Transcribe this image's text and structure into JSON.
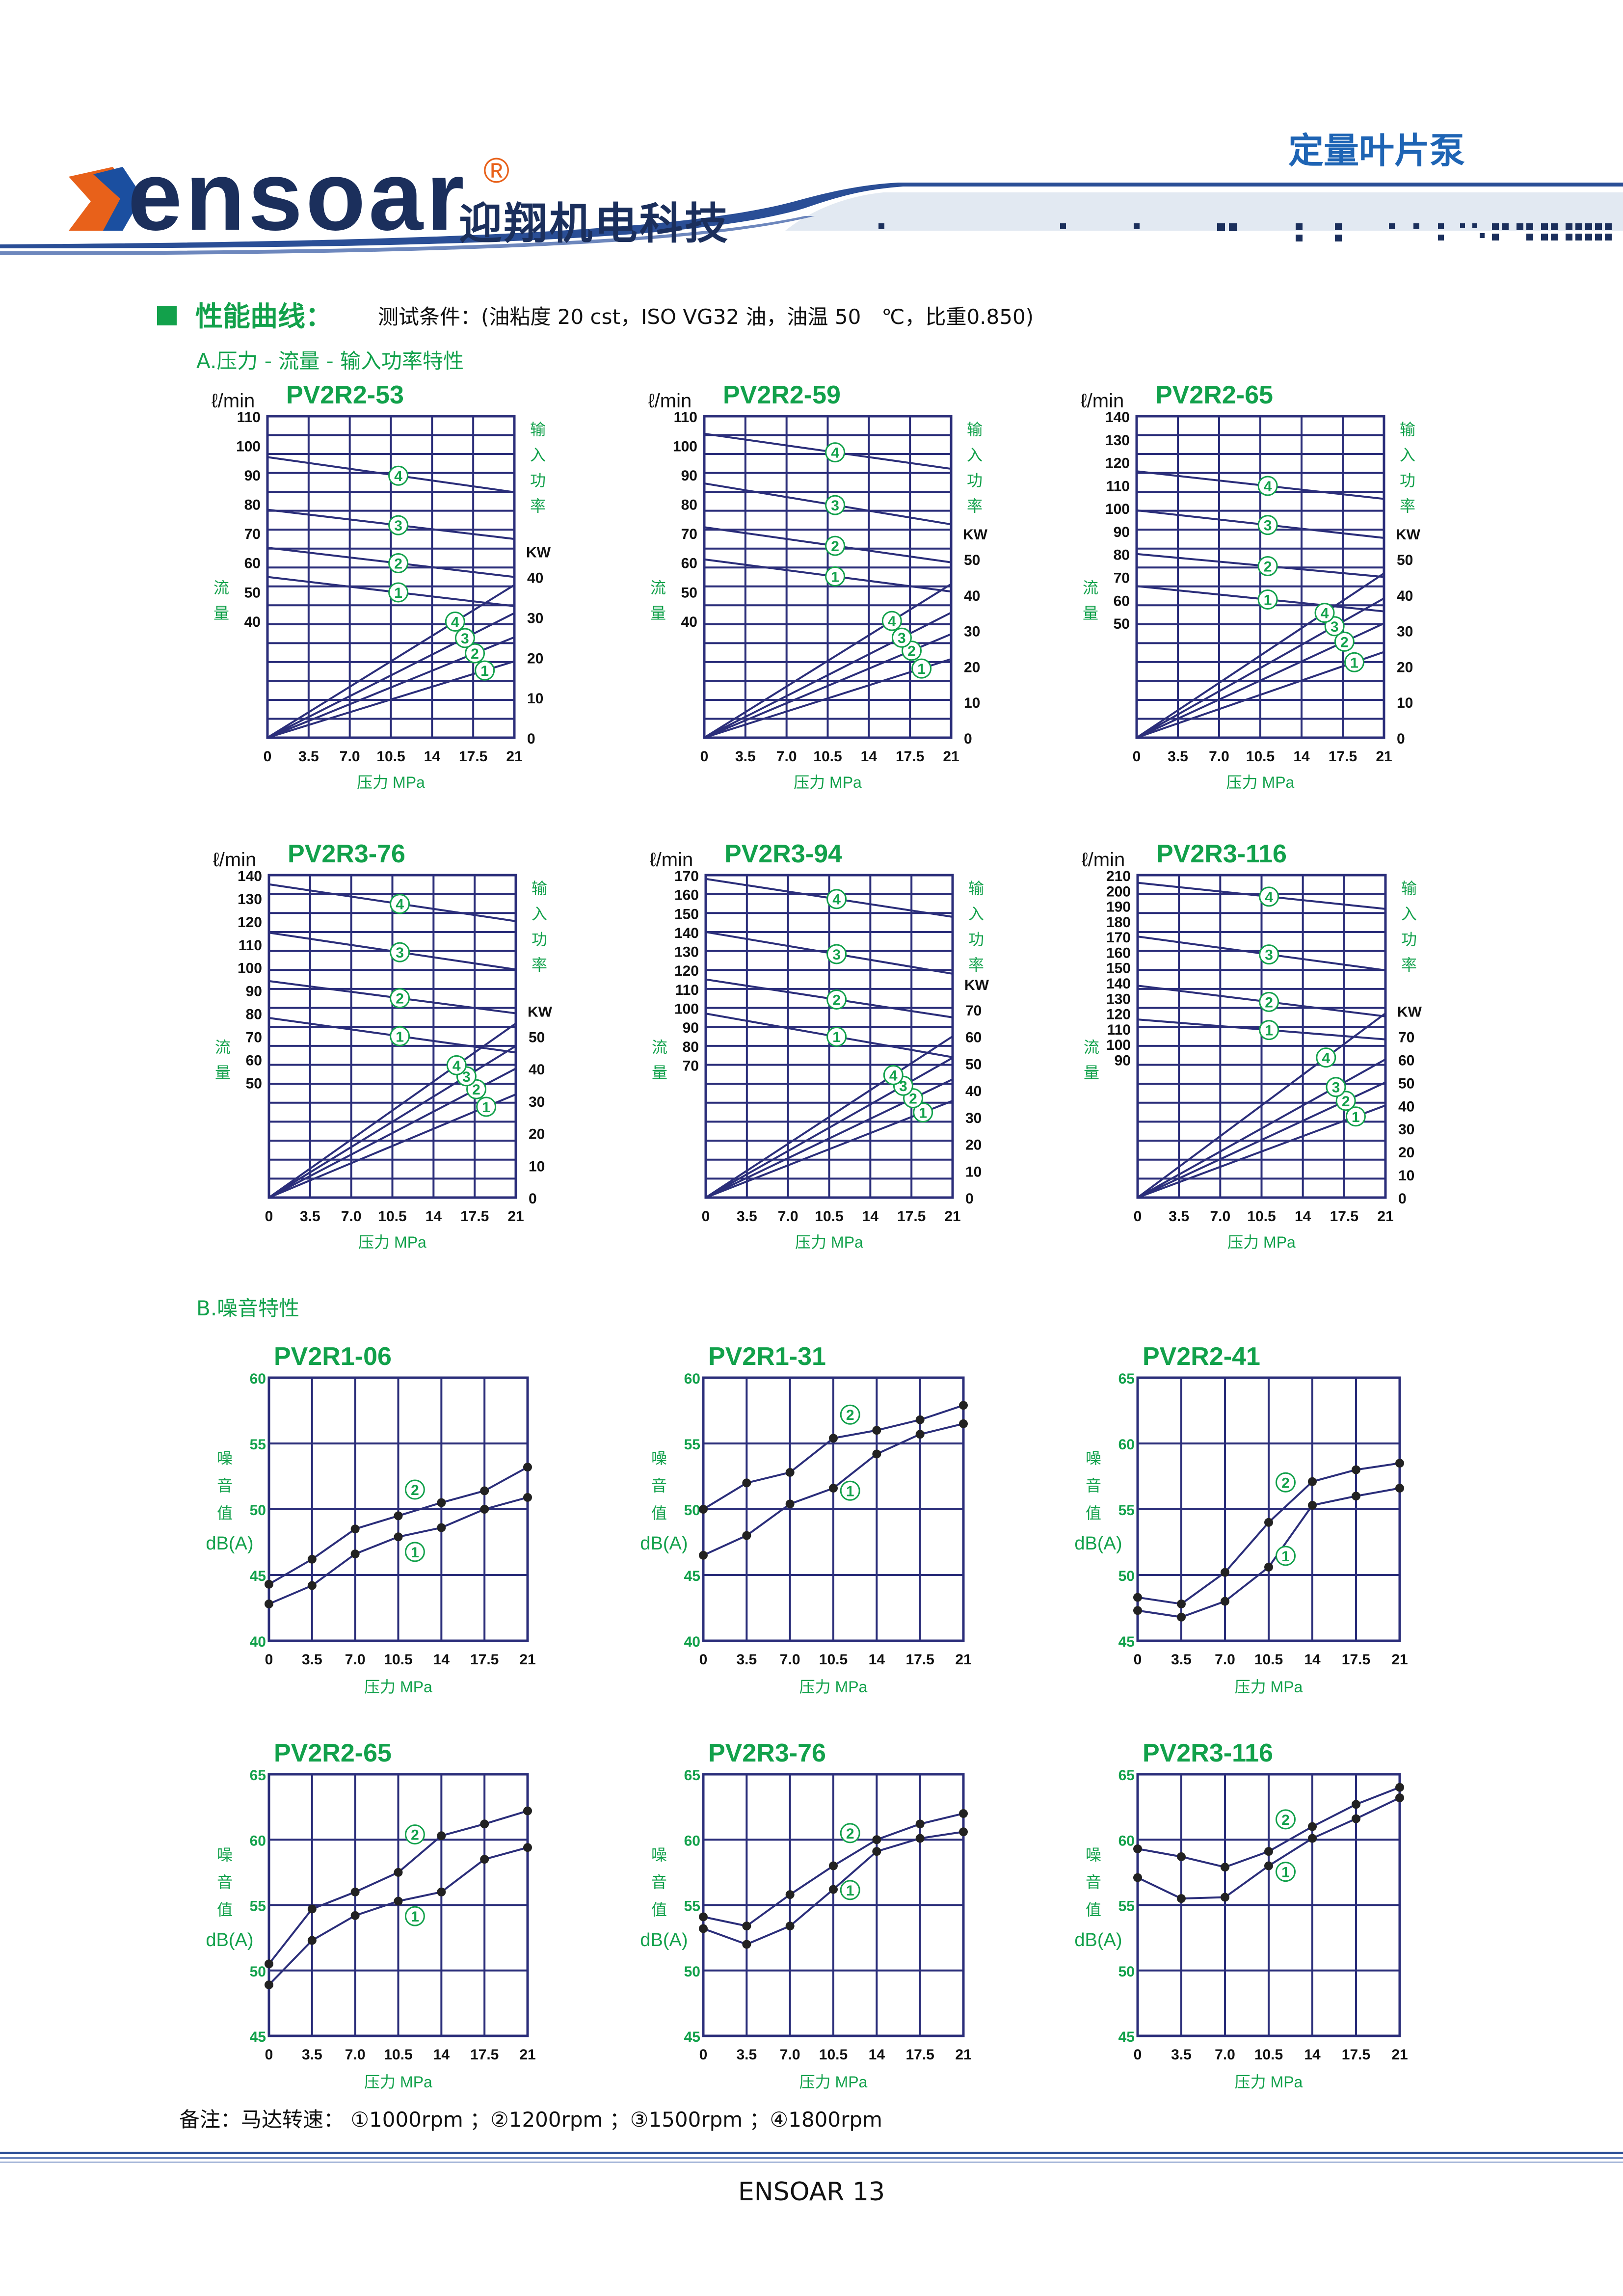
{
  "header": {
    "logo_text": "ensoar",
    "logo_registered": "®",
    "brand_cn": "迎翔机电科技",
    "category": "定量叶片泵"
  },
  "section": {
    "title": "性能曲线：",
    "conditions": "测试条件：(油粘度 20 cst，ISO VG32 油，油温 50　℃，比重0.850)",
    "sub_a": "A.压力 - 流量 - 输入功率特性",
    "sub_b": "B.噪音特性"
  },
  "chart_labels": {
    "flow_unit": "ℓ/min",
    "flow_axis": [
      "流",
      "量"
    ],
    "power_axis": [
      "输",
      "入",
      "功",
      "率"
    ],
    "power_unit": "KW",
    "pressure_axis": "压力 MPa",
    "noise_axis": [
      "噪",
      "音",
      "值"
    ],
    "noise_unit": "dB(A)",
    "x_ticks": [
      "0",
      "3.5",
      "7.0",
      "10.5",
      "14",
      "17.5",
      "21"
    ],
    "markers": [
      "1",
      "2",
      "3",
      "4"
    ]
  },
  "chart_data": [
    {
      "type": "line",
      "title": "PV2R2-53",
      "x_ticks": [
        "0",
        "3.5",
        "7.0",
        "10.5",
        "14",
        "17.5",
        "21"
      ],
      "flow_ticks": [
        "110",
        "100",
        "90",
        "80",
        "70",
        "60",
        "50",
        "40"
      ],
      "flow_ylim": [
        0,
        110
      ],
      "power_ticks": [
        "40",
        "30",
        "20",
        "10",
        "0"
      ],
      "power_ylim": [
        0,
        80
      ],
      "flow_series": [
        {
          "name": "1",
          "values": [
            55,
            45
          ]
        },
        {
          "name": "2",
          "values": [
            65,
            55
          ]
        },
        {
          "name": "3",
          "values": [
            78,
            68
          ]
        },
        {
          "name": "4",
          "values": [
            96,
            84
          ]
        }
      ],
      "power_series": [
        {
          "name": "1",
          "values": [
            0,
            19
          ]
        },
        {
          "name": "2",
          "values": [
            0,
            25
          ]
        },
        {
          "name": "3",
          "values": [
            0,
            31
          ]
        },
        {
          "name": "4",
          "values": [
            0,
            38
          ]
        }
      ]
    },
    {
      "type": "line",
      "title": "PV2R2-59",
      "x_ticks": [
        "0",
        "3.5",
        "7.0",
        "10.5",
        "14",
        "17.5",
        "21"
      ],
      "flow_ticks": [
        "110",
        "100",
        "90",
        "80",
        "70",
        "60",
        "50",
        "40"
      ],
      "flow_ylim": [
        0,
        110
      ],
      "power_ticks": [
        "50",
        "40",
        "30",
        "20",
        "10",
        "0"
      ],
      "power_ylim": [
        0,
        90
      ],
      "flow_series": [
        {
          "name": "1",
          "values": [
            61,
            50
          ]
        },
        {
          "name": "2",
          "values": [
            72,
            60
          ]
        },
        {
          "name": "3",
          "values": [
            87,
            73
          ]
        },
        {
          "name": "4",
          "values": [
            104,
            92
          ]
        }
      ],
      "power_series": [
        {
          "name": "1",
          "values": [
            0,
            22
          ]
        },
        {
          "name": "2",
          "values": [
            0,
            29
          ]
        },
        {
          "name": "3",
          "values": [
            0,
            35
          ]
        },
        {
          "name": "4",
          "values": [
            0,
            43
          ]
        }
      ]
    },
    {
      "type": "line",
      "title": "PV2R2-65",
      "x_ticks": [
        "0",
        "3.5",
        "7.0",
        "10.5",
        "14",
        "17.5",
        "21"
      ],
      "flow_ticks": [
        "140",
        "130",
        "120",
        "110",
        "100",
        "90",
        "80",
        "70",
        "60",
        "50"
      ],
      "flow_ylim": [
        0,
        140
      ],
      "power_ticks": [
        "50",
        "40",
        "30",
        "20",
        "10",
        "0"
      ],
      "power_ylim": [
        0,
        90
      ],
      "flow_series": [
        {
          "name": "1",
          "values": [
            66,
            55
          ]
        },
        {
          "name": "2",
          "values": [
            80,
            70
          ]
        },
        {
          "name": "3",
          "values": [
            99,
            87
          ]
        },
        {
          "name": "4",
          "values": [
            116,
            104
          ]
        }
      ],
      "power_series": [
        {
          "name": "1",
          "values": [
            0,
            24
          ]
        },
        {
          "name": "2",
          "values": [
            0,
            32
          ]
        },
        {
          "name": "3",
          "values": [
            0,
            39
          ]
        },
        {
          "name": "4",
          "values": [
            0,
            46
          ]
        }
      ]
    },
    {
      "type": "line",
      "title": "PV2R3-76",
      "x_ticks": [
        "0",
        "3.5",
        "7.0",
        "10.5",
        "14",
        "17.5",
        "21"
      ],
      "flow_ticks": [
        "140",
        "130",
        "120",
        "110",
        "100",
        "90",
        "80",
        "70",
        "60",
        "50"
      ],
      "flow_ylim": [
        0,
        140
      ],
      "power_ticks": [
        "50",
        "40",
        "30",
        "20",
        "10",
        "0"
      ],
      "power_ylim": [
        0,
        100
      ],
      "flow_series": [
        {
          "name": "1",
          "values": [
            78,
            63
          ]
        },
        {
          "name": "2",
          "values": [
            94,
            80
          ]
        },
        {
          "name": "3",
          "values": [
            115,
            99
          ]
        },
        {
          "name": "4",
          "values": [
            136,
            120
          ]
        }
      ],
      "power_series": [
        {
          "name": "1",
          "values": [
            0,
            32
          ]
        },
        {
          "name": "2",
          "values": [
            0,
            40
          ]
        },
        {
          "name": "3",
          "values": [
            0,
            47
          ]
        },
        {
          "name": "4",
          "values": [
            0,
            54
          ]
        }
      ]
    },
    {
      "type": "line",
      "title": "PV2R3-94",
      "x_ticks": [
        "0",
        "3.5",
        "7.0",
        "10.5",
        "14",
        "17.5",
        "21"
      ],
      "flow_ticks": [
        "170",
        "160",
        "150",
        "140",
        "130",
        "120",
        "110",
        "100",
        "90",
        "80",
        "70"
      ],
      "flow_ylim": [
        0,
        170
      ],
      "power_ticks": [
        "70",
        "60",
        "50",
        "40",
        "30",
        "20",
        "10",
        "0"
      ],
      "power_ylim": [
        0,
        120
      ],
      "flow_series": [
        {
          "name": "1",
          "values": [
            97,
            74
          ]
        },
        {
          "name": "2",
          "values": [
            115,
            95
          ]
        },
        {
          "name": "3",
          "values": [
            140,
            118
          ]
        },
        {
          "name": "4",
          "values": [
            168,
            148
          ]
        }
      ],
      "power_series": [
        {
          "name": "1",
          "values": [
            0,
            36
          ]
        },
        {
          "name": "2",
          "values": [
            0,
            44
          ]
        },
        {
          "name": "3",
          "values": [
            0,
            52
          ]
        },
        {
          "name": "4",
          "values": [
            0,
            60
          ]
        }
      ]
    },
    {
      "type": "line",
      "title": "PV2R3-116",
      "x_ticks": [
        "0",
        "3.5",
        "7.0",
        "10.5",
        "14",
        "17.5",
        "21"
      ],
      "flow_ticks": [
        "210",
        "200",
        "190",
        "180",
        "170",
        "160",
        "150",
        "140",
        "130",
        "120",
        "110",
        "100",
        "90"
      ],
      "flow_ylim": [
        0,
        210
      ],
      "power_ticks": [
        "70",
        "60",
        "50",
        "40",
        "30",
        "20",
        "10",
        "0"
      ],
      "power_ylim": [
        0,
        140
      ],
      "flow_series": [
        {
          "name": "1",
          "values": [
            116,
            103
          ]
        },
        {
          "name": "2",
          "values": [
            138,
            118
          ]
        },
        {
          "name": "3",
          "values": [
            170,
            148
          ]
        },
        {
          "name": "4",
          "values": [
            205,
            188
          ]
        }
      ],
      "power_series": [
        {
          "name": "1",
          "values": [
            0,
            40
          ]
        },
        {
          "name": "2",
          "values": [
            0,
            50
          ]
        },
        {
          "name": "3",
          "values": [
            0,
            60
          ]
        },
        {
          "name": "4",
          "values": [
            0,
            80
          ]
        }
      ]
    },
    {
      "type": "line",
      "title": "PV2R1-06",
      "x": [
        0,
        3.5,
        7.0,
        10.5,
        14,
        17.5,
        21
      ],
      "y_ticks": [
        "60",
        "55",
        "50",
        "45",
        "40"
      ],
      "ylim": [
        40,
        60
      ],
      "series": [
        {
          "name": "1",
          "values": [
            42.8,
            44.2,
            46.6,
            47.9,
            48.6,
            50.0,
            50.9
          ]
        },
        {
          "name": "2",
          "values": [
            44.3,
            46.2,
            48.5,
            49.5,
            50.5,
            51.4,
            53.2
          ]
        }
      ]
    },
    {
      "type": "line",
      "title": "PV2R1-31",
      "x": [
        0,
        3.5,
        7.0,
        10.5,
        14,
        17.5,
        21
      ],
      "y_ticks": [
        "60",
        "55",
        "50",
        "45",
        "40"
      ],
      "ylim": [
        40,
        60
      ],
      "series": [
        {
          "name": "1",
          "values": [
            46.5,
            48.0,
            50.4,
            51.6,
            54.2,
            55.7,
            56.5
          ]
        },
        {
          "name": "2",
          "values": [
            50.0,
            52.0,
            52.8,
            55.4,
            56.0,
            56.8,
            57.9
          ]
        }
      ]
    },
    {
      "type": "line",
      "title": "PV2R2-41",
      "x": [
        0,
        3.5,
        7.0,
        10.5,
        14,
        17.5,
        21
      ],
      "y_ticks": [
        "65",
        "60",
        "55",
        "50",
        "45"
      ],
      "ylim": [
        45,
        65
      ],
      "series": [
        {
          "name": "1",
          "values": [
            47.3,
            46.8,
            48.0,
            50.6,
            55.3,
            56.0,
            56.6
          ]
        },
        {
          "name": "2",
          "values": [
            48.3,
            47.8,
            50.2,
            54.0,
            57.1,
            58.0,
            58.5
          ]
        }
      ]
    },
    {
      "type": "line",
      "title": "PV2R2-65",
      "x": [
        0,
        3.5,
        7.0,
        10.5,
        14,
        17.5,
        21
      ],
      "y_ticks": [
        "65",
        "60",
        "55",
        "50",
        "45"
      ],
      "ylim": [
        45,
        65
      ],
      "series": [
        {
          "name": "1",
          "values": [
            48.9,
            52.3,
            54.2,
            55.3,
            56.0,
            58.5,
            59.4
          ]
        },
        {
          "name": "2",
          "values": [
            50.5,
            54.7,
            56.0,
            57.5,
            60.3,
            61.2,
            62.2
          ]
        }
      ]
    },
    {
      "type": "line",
      "title": "PV2R3-76",
      "x": [
        0,
        3.5,
        7.0,
        10.5,
        14,
        17.5,
        21
      ],
      "y_ticks": [
        "65",
        "60",
        "55",
        "50",
        "45"
      ],
      "ylim": [
        45,
        65
      ],
      "series": [
        {
          "name": "1",
          "values": [
            53.2,
            52.0,
            53.4,
            56.2,
            59.1,
            60.1,
            60.6
          ]
        },
        {
          "name": "2",
          "values": [
            54.1,
            53.4,
            55.8,
            58.0,
            60.0,
            61.2,
            62.0
          ]
        }
      ]
    },
    {
      "type": "line",
      "title": "PV2R3-116",
      "x": [
        0,
        3.5,
        7.0,
        10.5,
        14,
        17.5,
        21
      ],
      "y_ticks": [
        "65",
        "60",
        "55",
        "50",
        "45"
      ],
      "ylim": [
        45,
        65
      ],
      "series": [
        {
          "name": "1",
          "values": [
            57.1,
            55.5,
            55.6,
            58.0,
            60.1,
            61.6,
            63.2
          ]
        },
        {
          "name": "2",
          "values": [
            59.3,
            58.7,
            57.9,
            59.1,
            61.0,
            62.7,
            64.0
          ]
        }
      ]
    }
  ],
  "remark": {
    "text": "备注：马达转速：  ①1000rpm  ；②1200rpm  ；③1500rpm  ；④1800rpm"
  },
  "footer": {
    "page": "ENSOAR 13"
  },
  "colors": {
    "grid": "#2b2e7a",
    "title": "#12a14b",
    "marker": "#12a14b",
    "dark_blue": "#1b2f5c",
    "accent": "#1e64b4"
  }
}
